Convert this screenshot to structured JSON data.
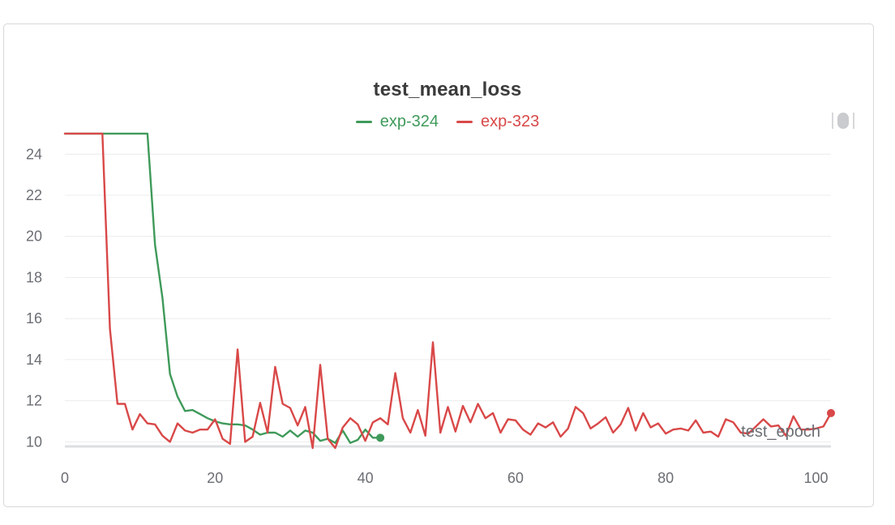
{
  "panel": {
    "title": "test_mean_loss"
  },
  "chart_data": {
    "type": "line",
    "title": "test_mean_loss",
    "xlabel": "test_epoch",
    "ylabel": "",
    "xlim": [
      0,
      102
    ],
    "ylim": [
      9.7,
      24.8
    ],
    "xticks": [
      0,
      20,
      40,
      60,
      80,
      100
    ],
    "yticks": [
      10,
      12,
      14,
      16,
      18,
      20,
      22,
      24
    ],
    "grid": "horizontal",
    "legend_position": "top-center",
    "series": [
      {
        "name": "exp-324",
        "color": "#3f9a5a",
        "x": [
          0,
          1,
          2,
          3,
          4,
          5,
          6,
          7,
          8,
          9,
          10,
          11,
          12,
          13,
          14,
          15,
          16,
          17,
          18,
          19,
          20,
          21,
          22,
          23,
          24,
          25,
          26,
          27,
          28,
          29,
          30,
          31,
          32,
          33,
          34,
          35,
          36,
          37,
          38,
          39,
          40,
          41,
          42
        ],
        "y": [
          25,
          25,
          25,
          25,
          25,
          25,
          25,
          25,
          25,
          25,
          25,
          25,
          19.6,
          17.0,
          13.3,
          12.2,
          11.5,
          11.55,
          11.35,
          11.15,
          11.0,
          10.9,
          10.85,
          10.85,
          10.8,
          10.6,
          10.35,
          10.45,
          10.45,
          10.25,
          10.55,
          10.25,
          10.55,
          10.45,
          10.05,
          10.15,
          9.95,
          10.55,
          9.95,
          10.1,
          10.6,
          10.2,
          10.2
        ]
      },
      {
        "name": "exp-323",
        "color": "#d94848",
        "x": [
          0,
          1,
          2,
          3,
          4,
          5,
          6,
          7,
          8,
          9,
          10,
          11,
          12,
          13,
          14,
          15,
          16,
          17,
          18,
          19,
          20,
          21,
          22,
          23,
          24,
          25,
          26,
          27,
          28,
          29,
          30,
          31,
          32,
          33,
          34,
          35,
          36,
          37,
          38,
          39,
          40,
          41,
          42,
          43,
          44,
          45,
          46,
          47,
          48,
          49,
          50,
          51,
          52,
          53,
          54,
          55,
          56,
          57,
          58,
          59,
          60,
          61,
          62,
          63,
          64,
          65,
          66,
          67,
          68,
          69,
          70,
          71,
          72,
          73,
          74,
          75,
          76,
          77,
          78,
          79,
          80,
          81,
          82,
          83,
          84,
          85,
          86,
          87,
          88,
          89,
          90,
          91,
          92,
          93,
          94,
          95,
          96,
          97,
          98,
          99,
          100,
          101,
          102
        ],
        "y": [
          25,
          25,
          25,
          25,
          25,
          25,
          15.5,
          11.85,
          11.85,
          10.6,
          11.35,
          10.9,
          10.85,
          10.3,
          10.0,
          10.9,
          10.55,
          10.45,
          10.6,
          10.6,
          11.1,
          10.15,
          9.9,
          14.5,
          10.0,
          10.25,
          11.9,
          10.45,
          13.65,
          11.85,
          11.65,
          10.8,
          11.7,
          9.7,
          13.75,
          10.15,
          9.7,
          10.7,
          11.15,
          10.85,
          10.05,
          10.95,
          11.15,
          10.85,
          13.35,
          11.15,
          10.45,
          11.55,
          10.3,
          14.85,
          10.45,
          11.7,
          10.5,
          11.75,
          10.95,
          11.85,
          11.15,
          11.4,
          10.45,
          11.1,
          11.05,
          10.6,
          10.35,
          10.9,
          10.7,
          10.95,
          10.25,
          10.65,
          11.7,
          11.4,
          10.65,
          10.9,
          11.2,
          10.45,
          10.85,
          11.65,
          10.55,
          11.4,
          10.7,
          10.9,
          10.4,
          10.6,
          10.65,
          10.55,
          11.05,
          10.45,
          10.5,
          10.25,
          11.1,
          10.95,
          10.45,
          10.4,
          10.75,
          11.1,
          10.75,
          10.8,
          10.3,
          11.25,
          10.6,
          10.6,
          10.65,
          10.75,
          11.4
        ]
      }
    ]
  }
}
